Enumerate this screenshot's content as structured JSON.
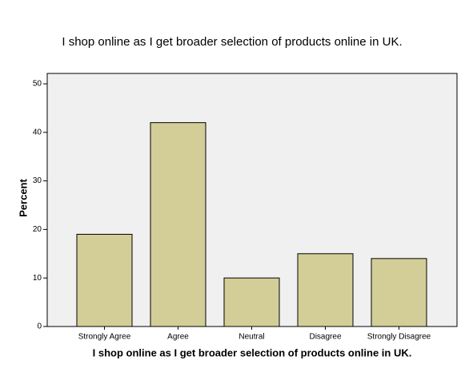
{
  "chart_data": {
    "type": "bar",
    "title": "I shop online as I get broader selection of products online in UK.",
    "x_label": "I shop online as I get broader selection of products online in UK.",
    "y_label": "Percent",
    "categories": [
      "Strongly Agree",
      "Agree",
      "Neutral",
      "Disagree",
      "Strongly Disagree"
    ],
    "values": [
      19,
      42,
      10,
      15,
      14
    ],
    "color": "#d3ce97",
    "ylim": [
      0,
      50
    ],
    "yticks": [
      0,
      10,
      20,
      30,
      40,
      50
    ],
    "grid": false
  }
}
